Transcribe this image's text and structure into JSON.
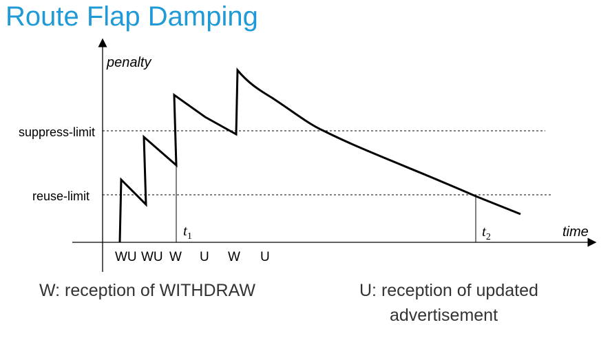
{
  "title": "Route Flap Damping",
  "axes": {
    "y_label": "penalty",
    "x_label": "time"
  },
  "thresholds": {
    "suppress": "suppress-limit",
    "reuse": "reuse-limit"
  },
  "time_markers": {
    "t1_base": "t",
    "t1_sub": "1",
    "t2_base": "t",
    "t2_sub": "2"
  },
  "events": [
    "WU",
    "WU",
    "W",
    "U",
    "W",
    "U"
  ],
  "legend": {
    "withdraw": "W: reception of WITHDRAW",
    "update_line1": "U: reception of updated",
    "update_line2": "advertisement"
  },
  "colors": {
    "title": "#1f9ad6",
    "line": "#000000",
    "text": "#333333"
  }
}
